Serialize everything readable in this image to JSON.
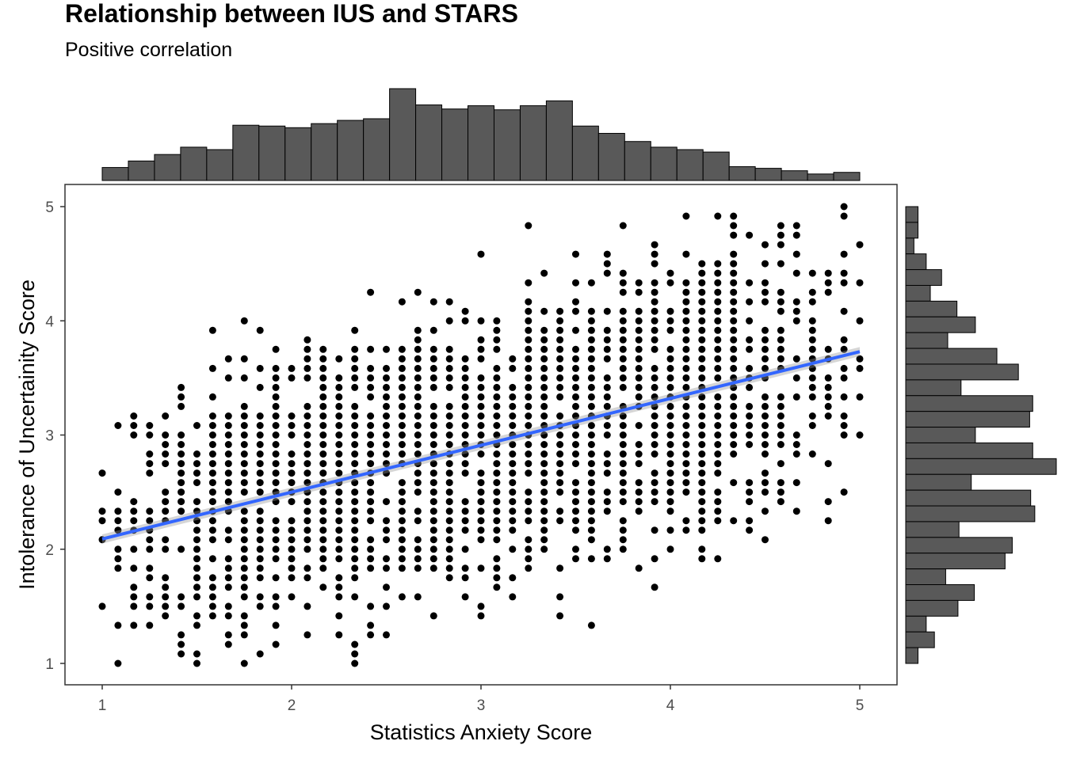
{
  "chart_data": {
    "type": "scatter",
    "title": "Relationship between IUS and STARS",
    "subtitle": "Positive correlation",
    "xlabel": "Statistics Anxiety Score",
    "ylabel": "Intolerance of Uncertainity Score",
    "xlim": [
      0.8,
      5.2
    ],
    "ylim": [
      0.8,
      5.2
    ],
    "x_ticks": [
      "1",
      "2",
      "3",
      "4",
      "5"
    ],
    "y_ticks": [
      "1",
      "2",
      "3",
      "4",
      "5"
    ],
    "grid": false,
    "point_color": "#000000",
    "point_grid_note_x_step": 0.0833,
    "point_grid_note_y_step": 0.0833,
    "regression_line": {
      "x": [
        1,
        5
      ],
      "y": [
        2.09,
        3.73
      ],
      "color": "#3366FF",
      "se_band": 0.04
    },
    "x_histogram": {
      "bin_centers": [
        1.07,
        1.21,
        1.35,
        1.49,
        1.63,
        1.77,
        1.91,
        2.05,
        2.19,
        2.33,
        2.47,
        2.61,
        2.75,
        2.89,
        3.03,
        3.17,
        3.31,
        3.45,
        3.59,
        3.73,
        3.87,
        4.01,
        4.15,
        4.29,
        4.43,
        4.57,
        4.71,
        4.85,
        4.93
      ],
      "counts": [
        16,
        24,
        32,
        41,
        38,
        68,
        67,
        65,
        70,
        74,
        76,
        113,
        93,
        88,
        92,
        87,
        92,
        98,
        67,
        58,
        48,
        41,
        38,
        35,
        17,
        15,
        12,
        8,
        10
      ],
      "fill": "#595959"
    },
    "y_histogram": {
      "bin_centers": [
        5.0,
        4.86,
        4.72,
        4.58,
        4.44,
        4.3,
        4.16,
        4.02,
        3.88,
        3.74,
        3.6,
        3.46,
        3.32,
        3.18,
        3.04,
        2.9,
        2.76,
        2.62,
        2.48,
        2.34,
        2.2,
        2.06,
        1.92,
        1.78,
        1.64,
        1.5,
        1.36,
        1.22,
        1.08
      ],
      "counts": [
        12,
        12,
        8,
        20,
        35,
        24,
        50,
        68,
        41,
        89,
        110,
        54,
        124,
        121,
        68,
        124,
        147,
        64,
        122,
        126,
        52,
        104,
        97,
        39,
        67,
        51,
        20,
        28,
        12
      ],
      "fill": "#595959"
    }
  }
}
